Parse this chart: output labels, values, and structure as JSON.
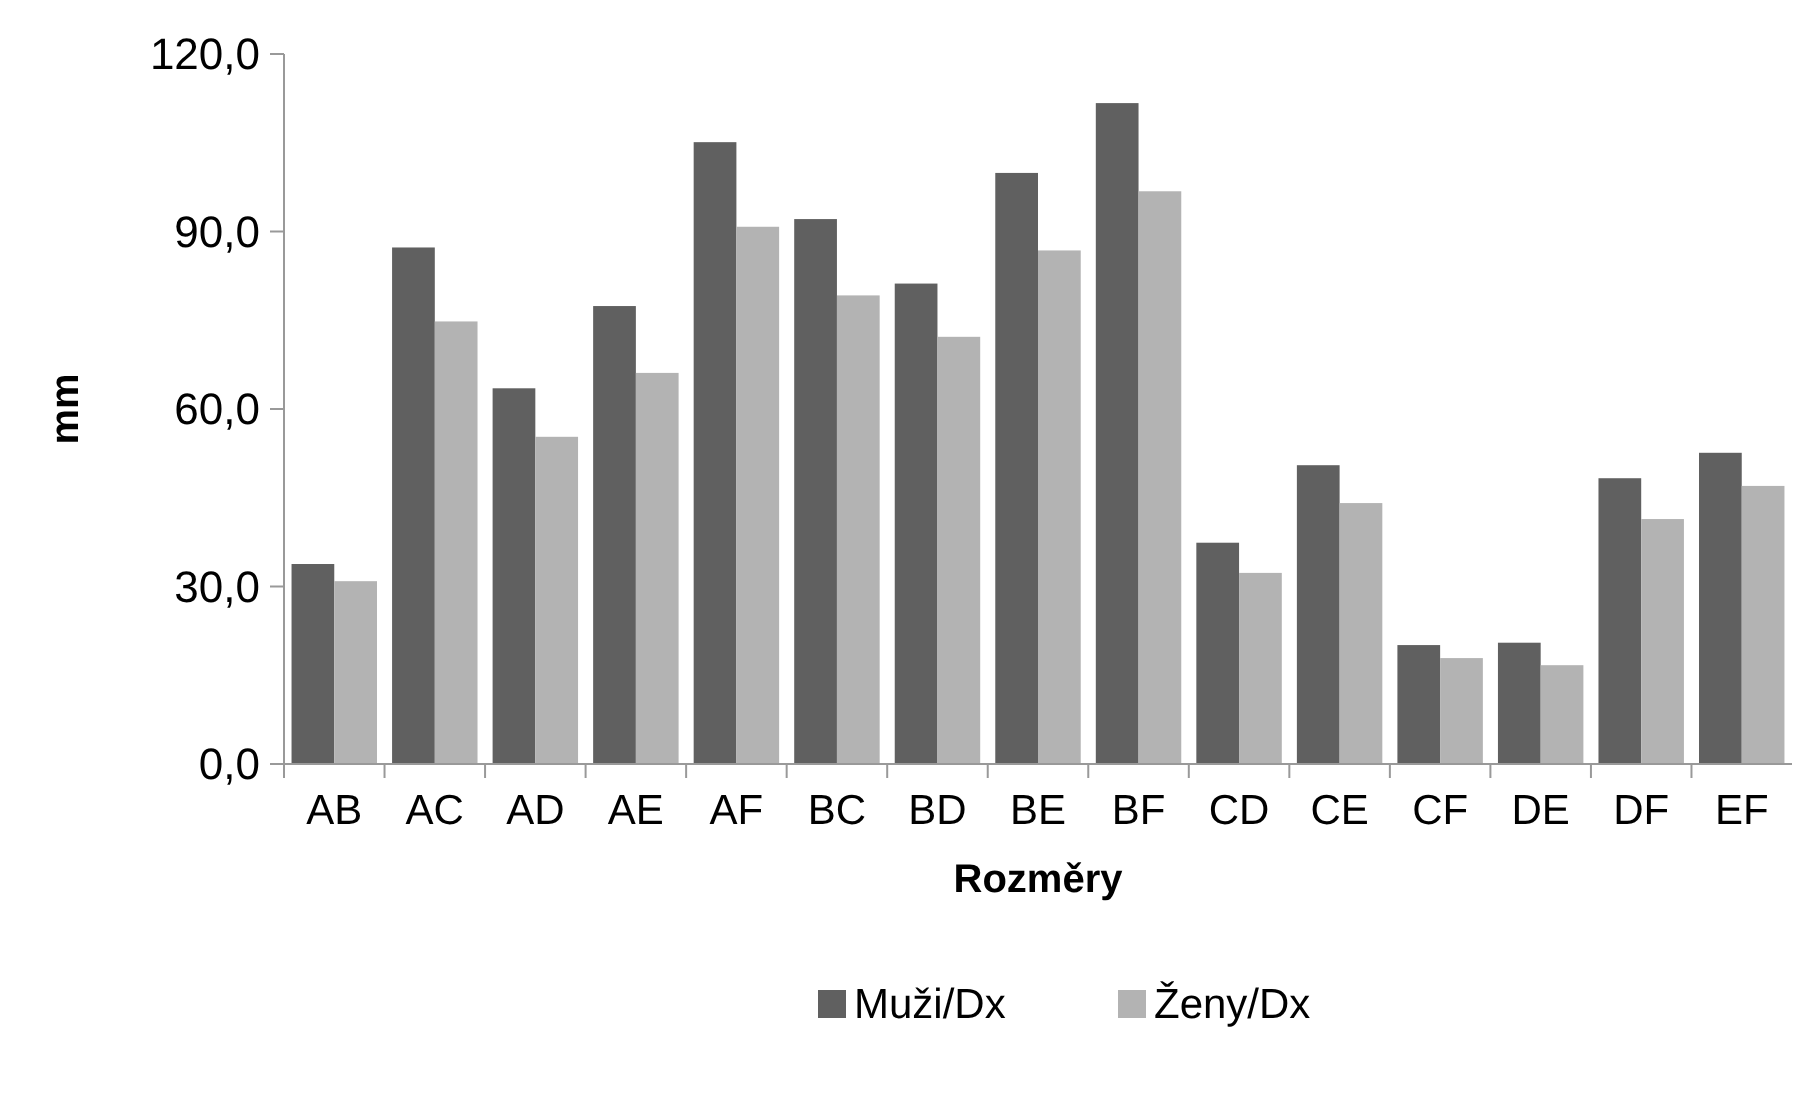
{
  "chart_data": {
    "type": "bar",
    "xlabel": "Rozměry",
    "ylabel": "mm",
    "categories": [
      "AB",
      "AC",
      "AD",
      "AE",
      "AF",
      "BC",
      "BD",
      "BE",
      "BF",
      "CD",
      "CE",
      "CF",
      "DE",
      "DF",
      "EF"
    ],
    "series": [
      {
        "name": "Muži/Dx",
        "color": "#606060",
        "values": [
          33.8,
          87.3,
          63.5,
          77.4,
          105.1,
          92.1,
          81.2,
          99.9,
          111.7,
          37.4,
          50.5,
          20.1,
          20.5,
          48.3,
          52.6
        ]
      },
      {
        "name": "Ženy/Dx",
        "color": "#b3b3b3",
        "values": [
          30.9,
          74.8,
          55.3,
          66.1,
          90.8,
          79.2,
          72.2,
          86.8,
          96.8,
          32.3,
          44.1,
          17.9,
          16.7,
          41.4,
          47.0
        ]
      }
    ],
    "ylim": [
      0,
      120
    ],
    "yticks": [
      {
        "value": 0,
        "label": "0,0"
      },
      {
        "value": 30,
        "label": "30,0"
      },
      {
        "value": 60,
        "label": "60,0"
      },
      {
        "value": 90,
        "label": "90,0"
      },
      {
        "value": 120,
        "label": "120,0"
      }
    ],
    "grid": false,
    "legend": "bottom"
  }
}
